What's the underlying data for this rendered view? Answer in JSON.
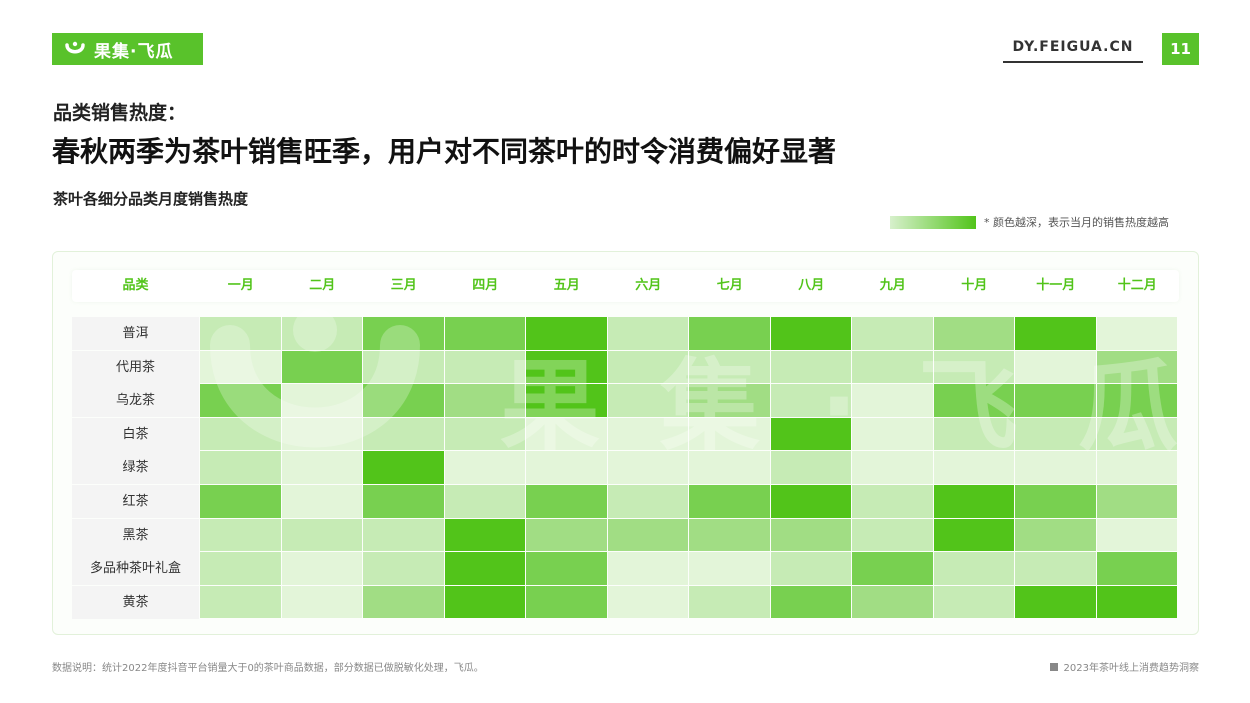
{
  "brand": {
    "logo_text": "果集·飞瓜",
    "site": "DY.FEIGUA.CN",
    "page_number": "11"
  },
  "kicker": "品类销售热度：",
  "headline": "春秋两季为茶叶销售旺季，用户对不同茶叶的时令消费偏好显著",
  "subtitle": "茶叶各细分品类月度销售热度",
  "legend": {
    "note": "* 颜色越深，表示当月的销售热度越高",
    "low_color": "#d7f0cc",
    "high_color": "#52c41a"
  },
  "footnote": "数据说明：统计2022年度抖音平台销量大于0的茶叶商品数据，部分数据已做脱敏化处理，飞瓜。",
  "report_name": "2023年茶叶线上消费趋势洞察",
  "chart_data": {
    "type": "heatmap",
    "corner_label": "品类",
    "columns": [
      "一月",
      "二月",
      "三月",
      "四月",
      "五月",
      "六月",
      "七月",
      "八月",
      "九月",
      "十月",
      "十一月",
      "十二月"
    ],
    "rows": [
      "普洱",
      "代用茶",
      "乌龙茶",
      "白茶",
      "绿茶",
      "红茶",
      "黑茶",
      "多品种茶叶礼盒",
      "黄茶"
    ],
    "scale": "1 = lightest, 5 = darkest",
    "values": [
      [
        2,
        2,
        4,
        4,
        5,
        2,
        4,
        5,
        2,
        3,
        5,
        1
      ],
      [
        1,
        4,
        2,
        2,
        5,
        2,
        2,
        2,
        2,
        2,
        1,
        3
      ],
      [
        4,
        1,
        4,
        3,
        5,
        2,
        3,
        2,
        1,
        4,
        4,
        4
      ],
      [
        2,
        1,
        2,
        2,
        1,
        1,
        1,
        5,
        1,
        2,
        2,
        2
      ],
      [
        2,
        1,
        5,
        1,
        1,
        1,
        1,
        2,
        1,
        1,
        1,
        1
      ],
      [
        4,
        1,
        4,
        2,
        4,
        2,
        4,
        5,
        2,
        5,
        4,
        3
      ],
      [
        2,
        2,
        2,
        5,
        3,
        3,
        3,
        3,
        2,
        5,
        3,
        1
      ],
      [
        2,
        1,
        2,
        5,
        4,
        1,
        1,
        2,
        4,
        2,
        2,
        4
      ],
      [
        2,
        1,
        3,
        5,
        4,
        1,
        2,
        4,
        3,
        2,
        5,
        5
      ]
    ],
    "color_levels": [
      "#e3f5d9",
      "#c6ebb5",
      "#a1dd84",
      "#78d050",
      "#52c41a"
    ]
  }
}
